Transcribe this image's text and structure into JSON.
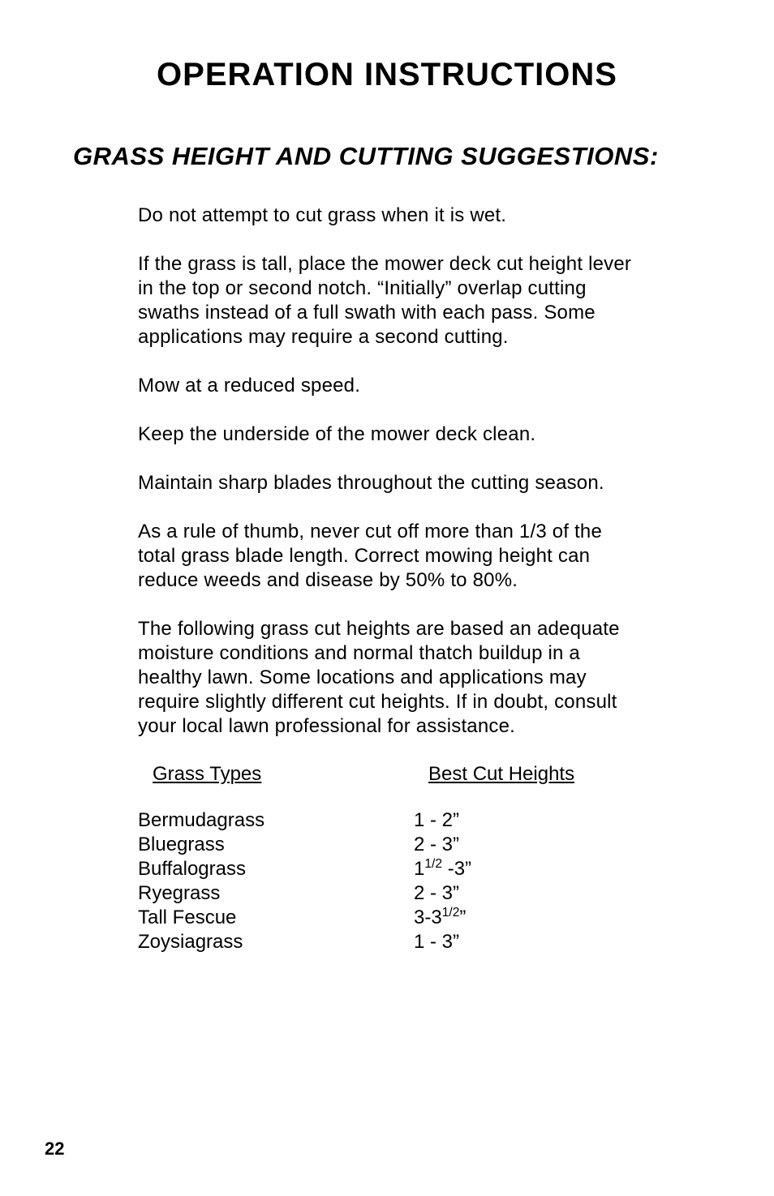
{
  "colors": {
    "background": "#ffffff",
    "text": "#000000"
  },
  "typography": {
    "title_fontsize_pt": 30,
    "section_fontsize_pt": 23,
    "body_fontsize_pt": 18,
    "title_weight": 700,
    "section_weight": 700,
    "section_style": "italic",
    "font_family": "sans-serif"
  },
  "title": "OPERATION  INSTRUCTIONS",
  "section_heading": "GRASS HEIGHT AND CUTTING SUGGESTIONS:",
  "paragraphs": [
    "Do not attempt to cut grass when it is wet.",
    "If the grass is tall, place the mower deck cut height lever in the top or second notch.  “Initially” overlap cutting swaths instead of a full swath with each pass.  Some applications may require a second cutting.",
    "Mow at a reduced speed.",
    "Keep the underside of the mower deck clean.",
    "Maintain sharp blades throughout the cutting season.",
    "As a rule of thumb, never cut off more than 1/3 of the total grass blade length.  Correct mowing height can reduce weeds and disease by 50% to 80%.",
    "The following grass cut heights are based an adequate moisture conditions and normal thatch buildup in a healthy lawn.  Some locations and applications may require slightly different cut heights.  If in doubt, consult your local lawn professional for assistance."
  ],
  "table": {
    "header_left": "Grass Types",
    "header_right": "Best Cut Heights",
    "rows": [
      {
        "type": "Bermudagrass",
        "height_prefix": "1 - 2",
        "height_sup": "",
        "height_suffix": "”"
      },
      {
        "type": "Bluegrass",
        "height_prefix": "2 - 3",
        "height_sup": "",
        "height_suffix": "”"
      },
      {
        "type": "Buffalograss",
        "height_prefix": "1",
        "height_sup": "1/2",
        "height_suffix": " -3”"
      },
      {
        "type": "Ryegrass",
        "height_prefix": "2 - 3",
        "height_sup": "",
        "height_suffix": "”"
      },
      {
        "type": "Tall Fescue",
        "height_prefix": "3-3",
        "height_sup": "1/2",
        "height_suffix": "”"
      },
      {
        "type": "Zoysiagrass",
        "height_prefix": "1 - 3",
        "height_sup": "",
        "height_suffix": "”"
      }
    ]
  },
  "page_number": "22"
}
